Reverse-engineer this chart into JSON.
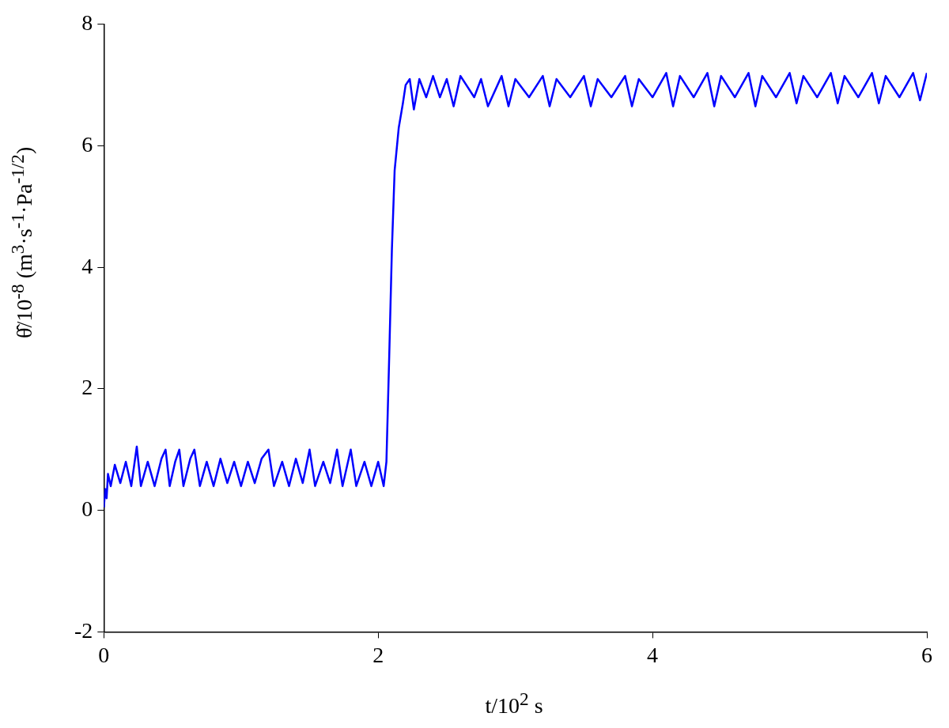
{
  "chart_data": {
    "type": "line",
    "xlabel": "t/10$^{2}$ s",
    "ylabel": "θ̂/10$^{-8}$ (m$^{3}$·s$^{-1}$·Pa$^{-1/2}$)",
    "xlim": [
      0,
      6
    ],
    "xticks": [
      0,
      2,
      4,
      6
    ],
    "ylim": [
      -2,
      8
    ],
    "yticks": [
      -2,
      0,
      2,
      4,
      6,
      8
    ],
    "legend": false,
    "marker": "none",
    "line_style": "solid",
    "series": [
      {
        "color": "#0000ff",
        "x": [
          0,
          0.01,
          0.02,
          0.03,
          0.05,
          0.08,
          0.12,
          0.16,
          0.2,
          0.24,
          0.27,
          0.32,
          0.37,
          0.42,
          0.45,
          0.48,
          0.52,
          0.55,
          0.58,
          0.63,
          0.66,
          0.7,
          0.75,
          0.8,
          0.85,
          0.9,
          0.95,
          1.0,
          1.05,
          1.1,
          1.15,
          1.2,
          1.24,
          1.3,
          1.35,
          1.4,
          1.45,
          1.5,
          1.54,
          1.6,
          1.65,
          1.7,
          1.74,
          1.8,
          1.84,
          1.9,
          1.95,
          2.0,
          2.04,
          2.06,
          2.08,
          2.1,
          2.12,
          2.15,
          2.18,
          2.2,
          2.23,
          2.26,
          2.3,
          2.35,
          2.4,
          2.45,
          2.5,
          2.55,
          2.6,
          2.7,
          2.75,
          2.8,
          2.9,
          2.95,
          3.0,
          3.1,
          3.2,
          3.25,
          3.3,
          3.4,
          3.5,
          3.55,
          3.6,
          3.7,
          3.8,
          3.85,
          3.9,
          4.0,
          4.1,
          4.15,
          4.2,
          4.3,
          4.4,
          4.45,
          4.5,
          4.6,
          4.7,
          4.75,
          4.8,
          4.9,
          5.0,
          5.05,
          5.1,
          5.2,
          5.3,
          5.35,
          5.4,
          5.5,
          5.6,
          5.65,
          5.7,
          5.8,
          5.9,
          5.95,
          6.0
        ],
        "values": [
          0.05,
          0.35,
          0.2,
          0.6,
          0.4,
          0.75,
          0.45,
          0.8,
          0.4,
          1.05,
          0.4,
          0.8,
          0.4,
          0.85,
          1.0,
          0.4,
          0.8,
          1.0,
          0.4,
          0.85,
          1.0,
          0.4,
          0.8,
          0.4,
          0.85,
          0.45,
          0.8,
          0.4,
          0.8,
          0.45,
          0.85,
          1.0,
          0.4,
          0.8,
          0.4,
          0.85,
          0.45,
          1.0,
          0.4,
          0.8,
          0.45,
          1.0,
          0.4,
          1.0,
          0.4,
          0.8,
          0.4,
          0.8,
          0.4,
          0.8,
          2.5,
          4.3,
          5.6,
          6.3,
          6.7,
          7.0,
          7.1,
          6.6,
          7.1,
          6.8,
          7.15,
          6.8,
          7.1,
          6.65,
          7.15,
          6.8,
          7.1,
          6.65,
          7.15,
          6.65,
          7.1,
          6.8,
          7.15,
          6.65,
          7.1,
          6.8,
          7.15,
          6.65,
          7.1,
          6.8,
          7.15,
          6.65,
          7.1,
          6.8,
          7.2,
          6.65,
          7.15,
          6.8,
          7.2,
          6.65,
          7.15,
          6.8,
          7.2,
          6.65,
          7.15,
          6.8,
          7.2,
          6.7,
          7.15,
          6.8,
          7.2,
          6.7,
          7.15,
          6.8,
          7.2,
          6.7,
          7.15,
          6.8,
          7.2,
          6.75,
          7.2
        ]
      }
    ]
  }
}
